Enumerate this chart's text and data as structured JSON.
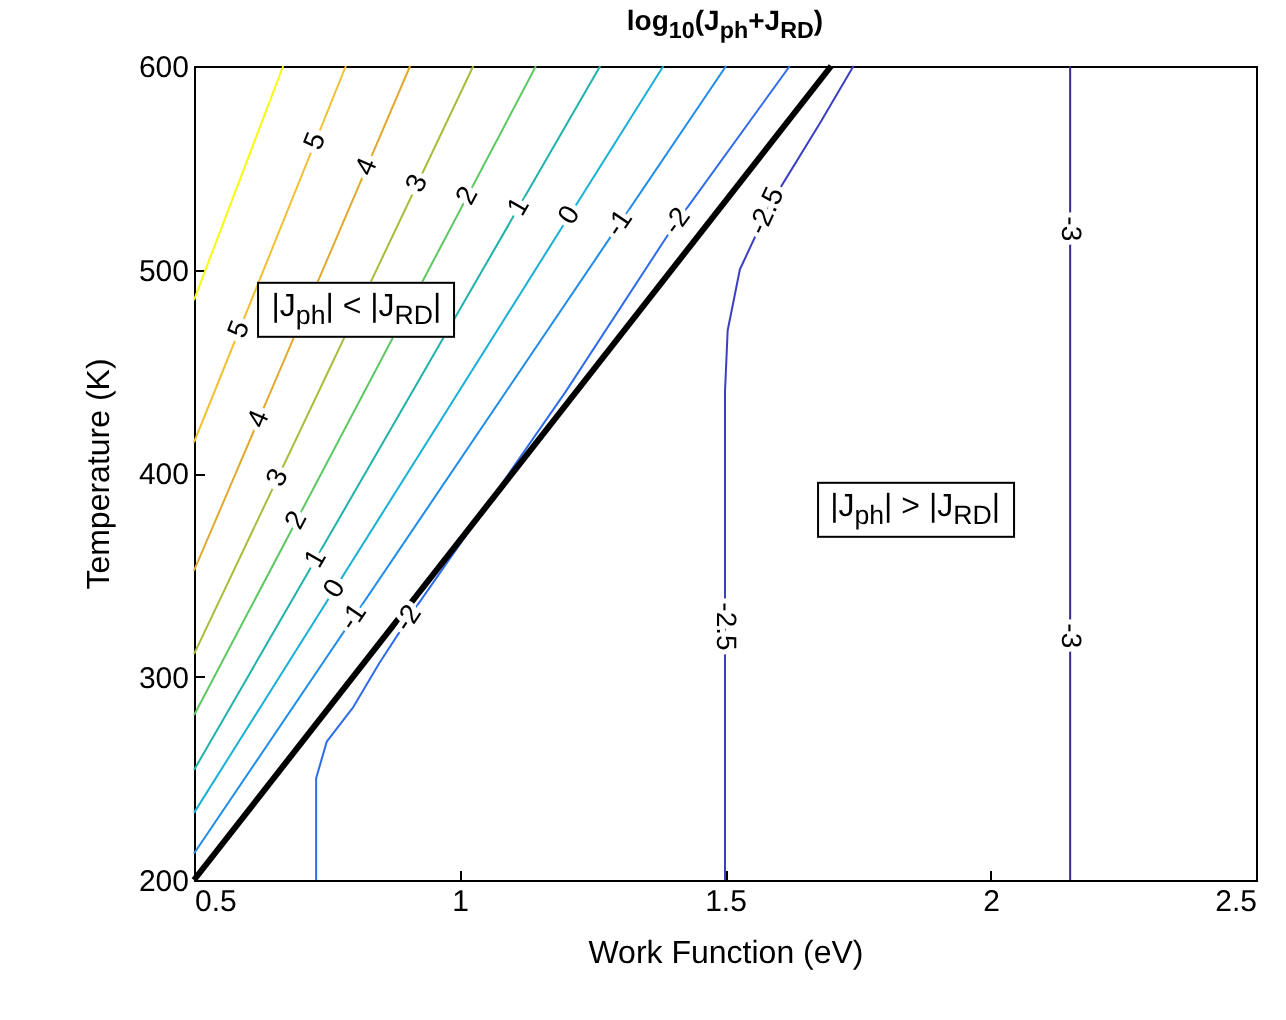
{
  "chart_data": {
    "type": "line",
    "title": "log$_{10}$(J$_{ph}$+J$_{RD}$)",
    "xlabel": "Work Function (eV)",
    "ylabel": "Temperature (K)",
    "xlim": [
      0.5,
      2.5
    ],
    "ylim": [
      200,
      600
    ],
    "xticks": [
      0.5,
      1,
      1.5,
      2,
      2.5
    ],
    "yticks": [
      200,
      300,
      400,
      500,
      600
    ],
    "grid": false,
    "marker": "none",
    "series": [
      {
        "color": "#f9fb0e",
        "x": [
          0.5,
          0.668
        ],
        "values": [
          485,
          600
        ]
      },
      {
        "name": "5",
        "color": "#f0c030",
        "x": [
          0.5,
          0.786
        ],
        "values": [
          415,
          600
        ]
      },
      {
        "name": "4",
        "color": "#e3a92e",
        "x": [
          0.5,
          0.907
        ],
        "values": [
          352,
          600
        ]
      },
      {
        "name": "3",
        "color": "#a5be3a",
        "x": [
          0.5,
          1.026
        ],
        "values": [
          311,
          600
        ]
      },
      {
        "name": "2",
        "color": "#5cc862",
        "x": [
          0.5,
          1.144
        ],
        "values": [
          281,
          600
        ]
      },
      {
        "name": "1",
        "color": "#20b2aa",
        "x": [
          0.5,
          1.265
        ],
        "values": [
          254,
          600
        ]
      },
      {
        "name": "0",
        "color": "#18b0d6",
        "x": [
          0.5,
          1.384
        ],
        "values": [
          233,
          600
        ]
      },
      {
        "name": "-1",
        "color": "#1e8ce8",
        "x": [
          0.5,
          1.502
        ],
        "values": [
          213,
          600
        ]
      },
      {
        "name": "-2",
        "color": "#2f6ce8",
        "x": [
          0.73,
          0.73,
          0.75,
          0.8,
          0.85,
          0.91,
          1.03,
          1.2,
          1.4,
          1.622
        ],
        "values": [
          200,
          250,
          268,
          285,
          307,
          331,
          376,
          440,
          520,
          600
        ]
      },
      {
        "name": "-2.5",
        "color": "#3b3fc0",
        "x": [
          1.5,
          1.5,
          1.505,
          1.528,
          1.585,
          1.679,
          1.742
        ],
        "values": [
          200,
          440,
          470,
          500,
          532,
          572,
          600
        ]
      },
      {
        "name": "-3",
        "color": "#352a87",
        "x": [
          2.15,
          2.15
        ],
        "values": [
          200,
          600
        ]
      },
      {
        "color": "#000000",
        "x": [
          0.5,
          1.7
        ],
        "values": [
          200,
          600
        ]
      }
    ],
    "annotations": [
      "|J$_{ph}$| < |J$_{RD}$|",
      "|J$_{ph}$| > |J$_{RD}$|"
    ]
  }
}
